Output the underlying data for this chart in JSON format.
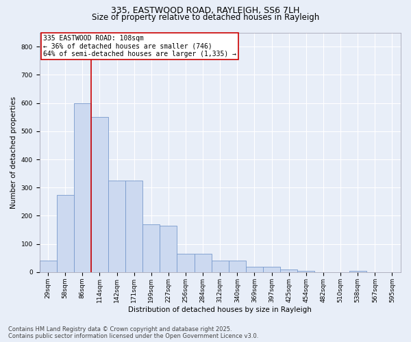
{
  "title_line1": "335, EASTWOOD ROAD, RAYLEIGH, SS6 7LH",
  "title_line2": "Size of property relative to detached houses in Rayleigh",
  "xlabel": "Distribution of detached houses by size in Rayleigh",
  "ylabel": "Number of detached properties",
  "bar_values": [
    40,
    275,
    600,
    550,
    325,
    325,
    170,
    165,
    65,
    65,
    40,
    40,
    20,
    20,
    10,
    5,
    0,
    0,
    5,
    0,
    0
  ],
  "bar_labels": [
    "29sqm",
    "58sqm",
    "86sqm",
    "114sqm",
    "142sqm",
    "171sqm",
    "199sqm",
    "227sqm",
    "256sqm",
    "284sqm",
    "312sqm",
    "340sqm",
    "369sqm",
    "397sqm",
    "425sqm",
    "454sqm",
    "482sqm",
    "510sqm",
    "538sqm",
    "567sqm",
    "595sqm"
  ],
  "bar_color": "#ccd9f0",
  "bar_edge_color": "#7799cc",
  "vline_color": "#cc0000",
  "vline_x": 2.5,
  "annotation_text": "335 EASTWOOD ROAD: 108sqm\n← 36% of detached houses are smaller (746)\n64% of semi-detached houses are larger (1,335) →",
  "annotation_box_color": "#ffffff",
  "annotation_box_edge_color": "#cc0000",
  "ylim": [
    0,
    850
  ],
  "yticks": [
    0,
    100,
    200,
    300,
    400,
    500,
    600,
    700,
    800
  ],
  "bg_color": "#e8eef8",
  "plot_bg_color": "#e8eef8",
  "grid_color": "#ffffff",
  "footer_line1": "Contains HM Land Registry data © Crown copyright and database right 2025.",
  "footer_line2": "Contains public sector information licensed under the Open Government Licence v3.0.",
  "title_fontsize": 9,
  "subtitle_fontsize": 8.5,
  "annotation_fontsize": 7,
  "footer_fontsize": 6,
  "axis_label_fontsize": 7.5,
  "tick_fontsize": 6.5
}
